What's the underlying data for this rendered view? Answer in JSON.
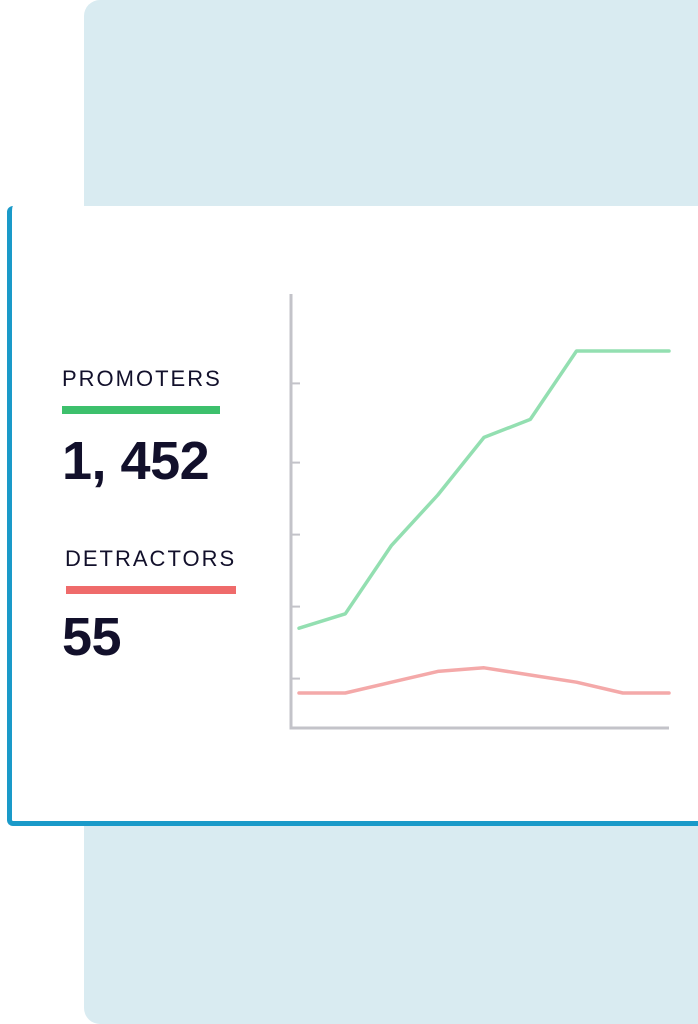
{
  "stats": {
    "promoters": {
      "label": "PROMOTERS",
      "value": "1, 452",
      "color": "#3dc06c"
    },
    "detractors": {
      "label": "DETRACTORS",
      "value": "55",
      "color": "#ef6b6b"
    }
  },
  "colors": {
    "background_panel": "#d9ebf1",
    "card_border": "#1a9ac9",
    "promoters_line": "#93dfb1",
    "detractors_line": "#f4a9a9",
    "axis": "#c3c3c9"
  },
  "chart_data": {
    "type": "line",
    "title": "",
    "xlabel": "",
    "ylabel": "",
    "x": [
      0,
      1,
      2,
      3,
      4,
      5,
      6,
      7,
      8
    ],
    "xlim": [
      0,
      8
    ],
    "ylim": [
      0,
      100
    ],
    "yticks": [
      9,
      29,
      49,
      69,
      91
    ],
    "grid": false,
    "legend": "none",
    "series": [
      {
        "key": "promoters",
        "values": [
          23,
          27,
          46,
          60,
          76,
          81,
          100,
          100,
          100
        ]
      },
      {
        "key": "detractors",
        "values": [
          5,
          5,
          8,
          11,
          12,
          10,
          8,
          5,
          5
        ]
      }
    ]
  }
}
